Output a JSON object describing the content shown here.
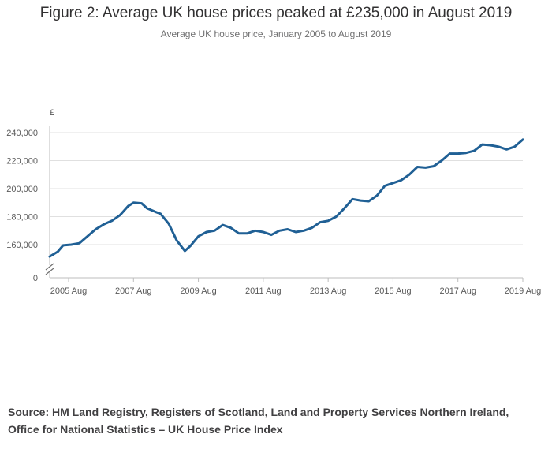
{
  "header": {
    "title": "Figure 2: Average UK house prices peaked at £235,000 in August 2019",
    "subtitle": "Average UK house price, January 2005 to August 2019"
  },
  "source": {
    "text": "Source: HM Land Registry, Registers of Scotland, Land and Property Services Northern Ireland, Office for National Statistics – UK House Price Index"
  },
  "colors": {
    "line": "#206095",
    "grid": "#e0e0e0",
    "axis": "#bdbdbd"
  },
  "chart_data": {
    "type": "line",
    "title": "Figure 2: Average UK house prices peaked at £235,000 in August 2019",
    "subtitle": "Average UK house price, January 2005 to August 2019",
    "y_unit_label": "£",
    "y_axis_break": true,
    "ylim": [
      150000,
      240000
    ],
    "y_ticks": [
      0,
      160000,
      180000,
      200000,
      220000,
      240000
    ],
    "y_tick_labels": [
      "0",
      "160,000",
      "180,000",
      "200,000",
      "220,000",
      "240,000"
    ],
    "x_ticks": [
      "2005-08",
      "2007-08",
      "2009-08",
      "2011-08",
      "2013-08",
      "2015-08",
      "2017-08",
      "2019-08"
    ],
    "x_tick_labels": [
      "2005 Aug",
      "2007 Aug",
      "2009 Aug",
      "2011 Aug",
      "2013 Aug",
      "2015 Aug",
      "2017 Aug",
      "2019 Aug"
    ],
    "grid": true,
    "series": [
      {
        "x": [
          "2005-01",
          "2005-04",
          "2005-06",
          "2005-09",
          "2005-12",
          "2006-03",
          "2006-06",
          "2006-09",
          "2006-12",
          "2007-03",
          "2007-06",
          "2007-08",
          "2007-11",
          "2008-01",
          "2008-04",
          "2008-06",
          "2008-09",
          "2008-12",
          "2009-03",
          "2009-05",
          "2009-08",
          "2009-11",
          "2010-02",
          "2010-05",
          "2010-08",
          "2010-11",
          "2011-02",
          "2011-05",
          "2011-08",
          "2011-11",
          "2012-02",
          "2012-05",
          "2012-08",
          "2012-11",
          "2013-02",
          "2013-05",
          "2013-08",
          "2013-11",
          "2014-02",
          "2014-05",
          "2014-08",
          "2014-11",
          "2015-02",
          "2015-05",
          "2015-08",
          "2015-11",
          "2016-02",
          "2016-05",
          "2016-08",
          "2016-11",
          "2017-02",
          "2017-05",
          "2017-08",
          "2017-11",
          "2018-02",
          "2018-05",
          "2018-08",
          "2018-11",
          "2019-02",
          "2019-05",
          "2019-08"
        ],
        "values": [
          151500,
          155000,
          159500,
          160000,
          161000,
          166000,
          171000,
          174500,
          177000,
          181000,
          187500,
          190000,
          189500,
          186000,
          183500,
          182000,
          175000,
          163000,
          155500,
          159000,
          166000,
          169000,
          170000,
          174000,
          172000,
          168000,
          168000,
          170000,
          169000,
          167000,
          170000,
          171000,
          169000,
          170000,
          172000,
          176000,
          177000,
          180000,
          186000,
          192500,
          191500,
          191000,
          195000,
          202000,
          204000,
          206000,
          210000,
          215500,
          215000,
          216000,
          220000,
          225000,
          225000,
          225500,
          227000,
          231500,
          231000,
          230000,
          228000,
          230000,
          235000
        ]
      }
    ]
  }
}
